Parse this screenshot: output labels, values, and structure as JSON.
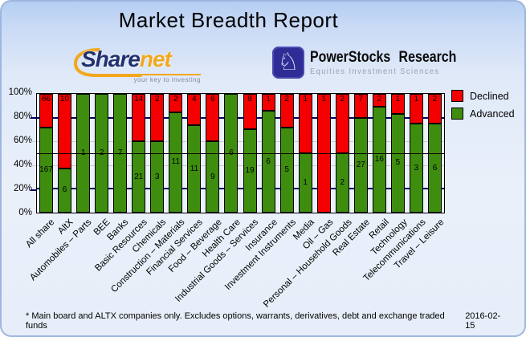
{
  "header": {
    "title": "Market Breadth Report"
  },
  "logos": {
    "sharenet": {
      "name_part1": "Share",
      "name_part2": "net",
      "tagline": "your key to investing",
      "accent_color": "#f2a71d",
      "navy_color": "#22306f"
    },
    "powerstocks": {
      "title": "PowerStocks Research",
      "subtitle": "Equities Investment Sciences",
      "icon": "knight-chess-icon",
      "icon_glyph": "♘",
      "icon_bg_color": "#2e2d96"
    }
  },
  "chart_data": {
    "type": "bar",
    "stacked": true,
    "unit": "percent of advancers+decliners; bar labels show counts",
    "categories": [
      "All share",
      "AltX",
      "Automobiles – Parts",
      "BEE",
      "Banks",
      "Basic Resources",
      "Chemicals",
      "Construction – Materials",
      "Financial Services",
      "Food – Beverage",
      "Health Care",
      "Industrial Goods – Services",
      "Insurance",
      "Investment Instruments",
      "Media",
      "Oil – Gas",
      "Personal – Household Goods",
      "Real Estate",
      "Retail",
      "Technology",
      "Telecommunications",
      "Travel – Leisure"
    ],
    "series": [
      {
        "name": "Declined",
        "color": "#f40000",
        "values": [
          66,
          10,
          0,
          0,
          0,
          14,
          2,
          2,
          4,
          6,
          0,
          8,
          1,
          2,
          1,
          1,
          2,
          7,
          2,
          1,
          1,
          2
        ]
      },
      {
        "name": "Advanced",
        "color": "#3e8d0e",
        "values": [
          167,
          6,
          1,
          2,
          7,
          21,
          3,
          11,
          11,
          9,
          6,
          19,
          6,
          5,
          1,
          0,
          2,
          27,
          16,
          5,
          3,
          6
        ]
      }
    ],
    "y_ticks": [
      "100%",
      "80%",
      "60%",
      "40%",
      "20%",
      "0%"
    ],
    "ylim": [
      0,
      100
    ],
    "midline_percent": 50,
    "grid": "on",
    "legend_position": "top-right",
    "gridline_major_color": "#000066",
    "gridline_minor_color": "#c9c9c9"
  },
  "footer": {
    "note": "* Main board and ALTX companies only. Excludes options, warrants, derivatives, debt and exchange traded funds",
    "date": "2016-02-15"
  }
}
